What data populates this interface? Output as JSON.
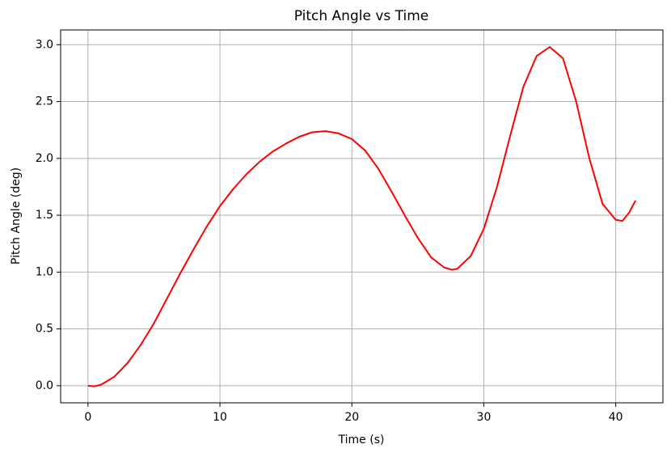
{
  "chart_data": {
    "type": "line",
    "title": "Pitch Angle vs Time",
    "x_label": "Time (s)",
    "y_label": "Pitch Angle (deg)",
    "x": [
      0,
      0.5,
      1,
      2,
      3,
      4,
      5,
      6,
      7,
      8,
      9,
      10,
      11,
      12,
      13,
      14,
      15,
      16,
      17,
      18,
      19,
      20,
      21,
      22,
      23,
      24,
      25,
      26,
      27,
      27.6,
      28,
      29,
      30,
      31,
      32,
      33,
      34,
      35,
      36,
      37,
      38,
      39,
      40,
      40.5,
      41,
      41.5
    ],
    "series": [
      {
        "name": "Pitch Angle",
        "color": "#ff0000",
        "values": [
          0,
          -0.005,
          0.01,
          0.08,
          0.2,
          0.36,
          0.55,
          0.77,
          0.99,
          1.2,
          1.4,
          1.58,
          1.73,
          1.86,
          1.97,
          2.06,
          2.13,
          2.19,
          2.23,
          2.24,
          2.22,
          2.17,
          2.07,
          1.91,
          1.71,
          1.5,
          1.3,
          1.13,
          1.04,
          1.02,
          1.03,
          1.14,
          1.38,
          1.75,
          2.2,
          2.63,
          2.9,
          2.98,
          2.88,
          2.5,
          2.0,
          1.6,
          1.46,
          1.45,
          1.52,
          1.63
        ]
      }
    ],
    "xlim": [
      -2.075,
      43.575
    ],
    "xticks": [
      0,
      10,
      20,
      30,
      40
    ],
    "ylim": [
      -0.15,
      3.13
    ],
    "yticks": [
      {
        "value": 0,
        "label": "0.0"
      },
      0.5,
      {
        "value": 1,
        "label": "1.0"
      },
      1.5,
      {
        "value": 2,
        "label": "2.0"
      },
      2.5,
      {
        "value": 3,
        "label": "3.0"
      }
    ],
    "grid": true
  }
}
